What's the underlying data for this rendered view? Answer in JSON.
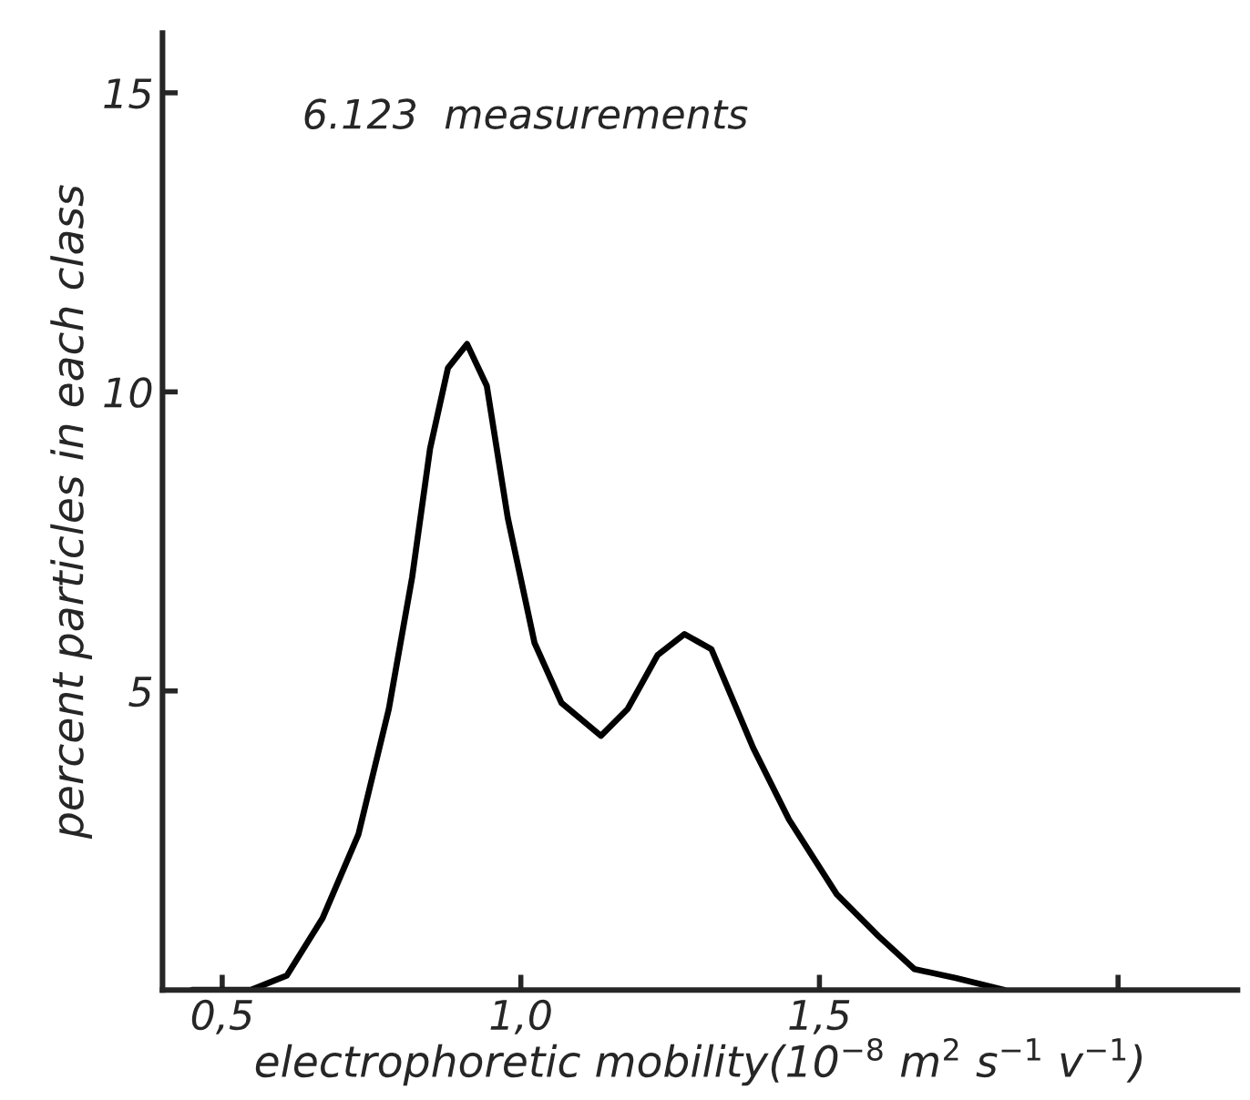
{
  "chart_data": {
    "type": "line",
    "xlabel": "electrophoretic mobility(10$^{−8}$ m$^{2}$ s$^{−1}$ v$^{−1}$)",
    "ylabel": "percent particles in each class",
    "annotations": [
      "6.123  measurements"
    ],
    "x": [
      0.45,
      0.548,
      0.608,
      0.668,
      0.728,
      0.779,
      0.818,
      0.848,
      0.878,
      0.91,
      0.943,
      0.978,
      1.023,
      1.068,
      1.134,
      1.179,
      1.229,
      1.274,
      1.319,
      1.389,
      1.449,
      1.529,
      1.599,
      1.659,
      1.728,
      1.81
    ],
    "series": [
      {
        "color": "#000000",
        "values": [
          0,
          0,
          0.24,
          1.2,
          2.6,
          4.7,
          6.9,
          9.05,
          10.4,
          10.8,
          10.1,
          7.9,
          5.8,
          4.8,
          4.25,
          4.7,
          5.6,
          5.95,
          5.7,
          4.05,
          2.85,
          1.6,
          0.9,
          0.35,
          0.2,
          0
        ]
      }
    ],
    "xlim": [
      0.4,
      2.2
    ],
    "ylim": [
      0,
      16
    ],
    "xticks": [
      {
        "value": 0.5,
        "label": "0,5"
      },
      {
        "value": 1.0,
        "label": "1,0"
      },
      {
        "value": 1.5,
        "label": "1,5"
      },
      {
        "value": 2.0,
        "label": null
      }
    ],
    "yticks": [
      5,
      10,
      15
    ],
    "marker": "none",
    "line_style": "solid"
  }
}
